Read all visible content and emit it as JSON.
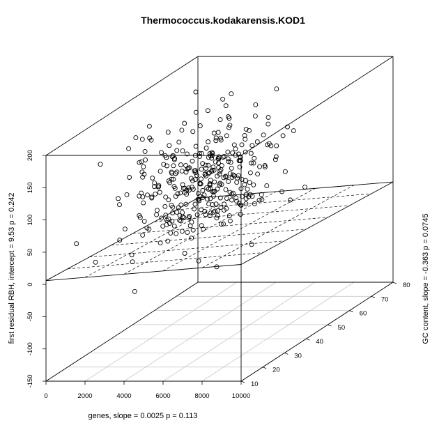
{
  "chart_data": {
    "type": "scatter3d",
    "title": "Thermococcus.kodakarensis.KOD1",
    "xlabel": "genes, slope =  0.0025 p =  0.113",
    "ylabel": "GC content, slope =  -0.363 p =  0.0745",
    "zlabel": "first residual RBH, intercept =   9.53 p =  0.242",
    "xlim": [
      0,
      10000
    ],
    "ylim": [
      10,
      80
    ],
    "zlim": [
      -150,
      200
    ],
    "x_ticks": [
      "0",
      "2000",
      "4000",
      "6000",
      "8000",
      "10000"
    ],
    "y_ticks": [
      "10",
      "20",
      "30",
      "40",
      "50",
      "60",
      "70",
      "80"
    ],
    "z_ticks": [
      "-150",
      "-100",
      "-50",
      "0",
      "50",
      "100",
      "150",
      "200"
    ],
    "regression_plane": {
      "intercept": 9.53,
      "slope_x": 0.0025,
      "slope_y": -0.363
    },
    "box": true,
    "grid": "floor",
    "point_count": 360,
    "point_style": "open-circle"
  }
}
